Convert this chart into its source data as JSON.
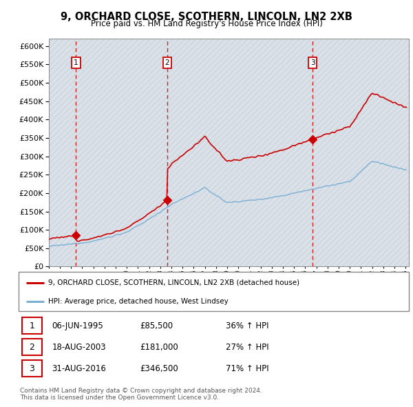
{
  "title": "9, ORCHARD CLOSE, SCOTHERN, LINCOLN, LN2 2XB",
  "subtitle": "Price paid vs. HM Land Registry's House Price Index (HPI)",
  "ylim": [
    0,
    620000
  ],
  "yticks": [
    0,
    50000,
    100000,
    150000,
    200000,
    250000,
    300000,
    350000,
    400000,
    450000,
    500000,
    550000,
    600000
  ],
  "sales": [
    {
      "date_num": 1995.44,
      "price": 85500,
      "label": "1"
    },
    {
      "date_num": 2003.63,
      "price": 181000,
      "label": "2"
    },
    {
      "date_num": 2016.66,
      "price": 346500,
      "label": "3"
    }
  ],
  "legend_sale": "9, ORCHARD CLOSE, SCOTHERN, LINCOLN, LN2 2XB (detached house)",
  "legend_hpi": "HPI: Average price, detached house, West Lindsey",
  "table_rows": [
    [
      "1",
      "06-JUN-1995",
      "£85,500",
      "36% ↑ HPI"
    ],
    [
      "2",
      "18-AUG-2003",
      "£181,000",
      "27% ↑ HPI"
    ],
    [
      "3",
      "31-AUG-2016",
      "£346,500",
      "71% ↑ HPI"
    ]
  ],
  "footer": "Contains HM Land Registry data © Crown copyright and database right 2024.\nThis data is licensed under the Open Government Licence v3.0.",
  "sale_line_color": "#cc0000",
  "hpi_line_color": "#7bafd4",
  "vline_color": "#cc0000",
  "marker_color": "#cc0000",
  "box_color": "#cc0000",
  "grid_color": "#c8c8c8",
  "plot_bg": "#dce6f1",
  "hatch_color": "#d8d8d8",
  "xmin": 1993,
  "xmax": 2025.3
}
